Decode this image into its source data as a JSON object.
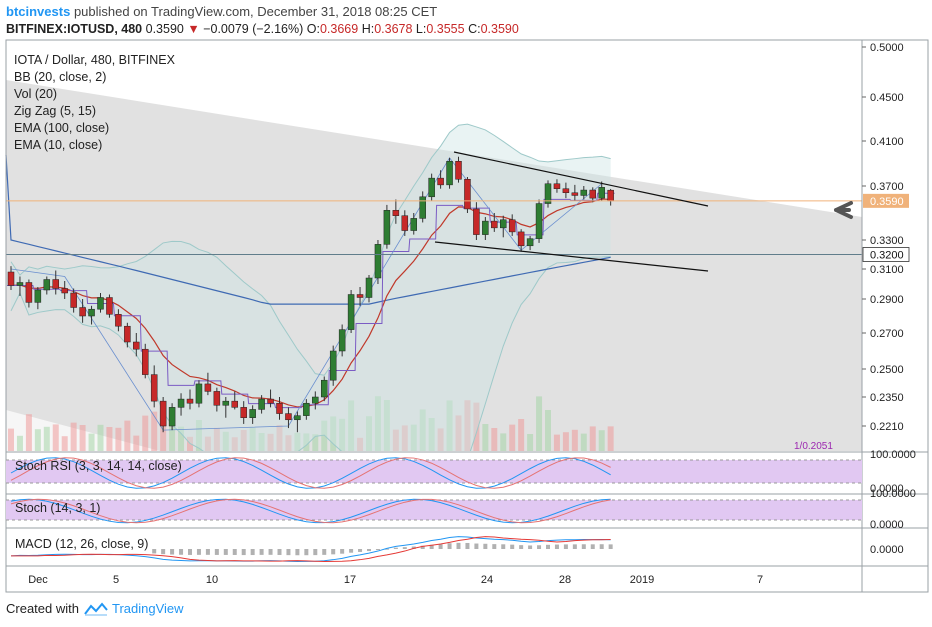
{
  "header": {
    "author": "btcinvests",
    "published": "published on TradingView.com, December 31, 2018 08:25 CET",
    "symbol": "BITFINEX:IOTUSD, 480",
    "last": "0.3590",
    "change": "−0.0079 (−2.16%)",
    "o_label": "O:",
    "o": "0.3669",
    "h_label": "H:",
    "h": "0.3678",
    "l_label": "L:",
    "l": "0.3555",
    "c_label": "C:",
    "c": "0.3590"
  },
  "legend": {
    "title": "IOTA / Dollar, 480, BITFINEX",
    "items": [
      "BB (20, close, 2)",
      "Vol (20)",
      "Zig Zag (5, 15)",
      "EMA (100, close)",
      "EMA (10, close)"
    ]
  },
  "price_axis": {
    "ticks": [
      "0.5000",
      "0.4500",
      "0.4100",
      "0.3700",
      "0.3300",
      "0.3100",
      "0.2900",
      "0.2700",
      "0.2500",
      "0.2350",
      "0.2210"
    ],
    "tick_values": [
      0.5,
      0.45,
      0.41,
      0.37,
      0.33,
      0.31,
      0.29,
      0.27,
      0.25,
      0.235,
      0.221
    ],
    "last_price_tag": "0.3590",
    "level_tag": "0.3200",
    "vol_tag": "1/0.2051"
  },
  "time_axis": {
    "labels": [
      "Dec",
      "5",
      "10",
      "17",
      "24",
      "28",
      "2019",
      "7"
    ]
  },
  "panes": {
    "stoch_rsi": {
      "label": "Stoch RSI (3, 3, 14, 14, close)",
      "ticks": [
        "100.0000",
        "0.0000"
      ]
    },
    "stoch": {
      "label": "Stoch (14, 3, 1)",
      "ticks": [
        "100.0000",
        "0.0000"
      ]
    },
    "macd": {
      "label": "MACD (12, 26, close, 9)",
      "ticks": [
        "0.0000"
      ]
    }
  },
  "footer": {
    "created": "Created with",
    "brand": "TradingView"
  },
  "colors": {
    "up": "#2e7d32",
    "down": "#c62828",
    "ema100": "#3f6ab3",
    "ema10": "#c0392b",
    "zigzag": "#7b5cc4",
    "bb": "#9ec9c9",
    "stoch_band": "#e1c8f2",
    "price_line": "#f0b27a",
    "accent": "#2196f3"
  },
  "chart_data": {
    "type": "candlestick",
    "interval": "480",
    "series": [
      {
        "name": "IOTA / Dollar",
        "ohlc": [
          [
            0.308,
            0.312,
            0.296,
            0.299
          ],
          [
            0.299,
            0.305,
            0.292,
            0.301
          ],
          [
            0.301,
            0.303,
            0.285,
            0.288
          ],
          [
            0.288,
            0.298,
            0.284,
            0.296
          ],
          [
            0.296,
            0.305,
            0.293,
            0.303
          ],
          [
            0.303,
            0.309,
            0.293,
            0.297
          ],
          [
            0.297,
            0.302,
            0.29,
            0.294
          ],
          [
            0.294,
            0.297,
            0.282,
            0.285
          ],
          [
            0.285,
            0.29,
            0.276,
            0.28
          ],
          [
            0.28,
            0.286,
            0.275,
            0.284
          ],
          [
            0.284,
            0.294,
            0.282,
            0.291
          ],
          [
            0.291,
            0.293,
            0.279,
            0.281
          ],
          [
            0.281,
            0.284,
            0.271,
            0.274
          ],
          [
            0.274,
            0.276,
            0.262,
            0.265
          ],
          [
            0.265,
            0.27,
            0.257,
            0.261
          ],
          [
            0.261,
            0.264,
            0.245,
            0.247
          ],
          [
            0.247,
            0.252,
            0.23,
            0.233
          ],
          [
            0.233,
            0.235,
            0.218,
            0.221
          ],
          [
            0.221,
            0.232,
            0.219,
            0.23
          ],
          [
            0.23,
            0.237,
            0.226,
            0.234
          ],
          [
            0.234,
            0.239,
            0.229,
            0.232
          ],
          [
            0.232,
            0.244,
            0.23,
            0.242
          ],
          [
            0.242,
            0.248,
            0.236,
            0.238
          ],
          [
            0.238,
            0.24,
            0.228,
            0.231
          ],
          [
            0.231,
            0.235,
            0.225,
            0.233
          ],
          [
            0.233,
            0.238,
            0.229,
            0.23
          ],
          [
            0.23,
            0.233,
            0.222,
            0.225
          ],
          [
            0.225,
            0.231,
            0.222,
            0.229
          ],
          [
            0.229,
            0.236,
            0.227,
            0.234
          ],
          [
            0.234,
            0.239,
            0.23,
            0.232
          ],
          [
            0.232,
            0.235,
            0.224,
            0.227
          ],
          [
            0.227,
            0.23,
            0.22,
            0.224
          ],
          [
            0.224,
            0.228,
            0.218,
            0.226
          ],
          [
            0.226,
            0.234,
            0.224,
            0.232
          ],
          [
            0.232,
            0.238,
            0.229,
            0.235
          ],
          [
            0.235,
            0.246,
            0.233,
            0.244
          ],
          [
            0.244,
            0.263,
            0.241,
            0.26
          ],
          [
            0.26,
            0.275,
            0.257,
            0.272
          ],
          [
            0.272,
            0.296,
            0.27,
            0.293
          ],
          [
            0.293,
            0.298,
            0.286,
            0.291
          ],
          [
            0.291,
            0.306,
            0.288,
            0.304
          ],
          [
            0.304,
            0.33,
            0.3,
            0.327
          ],
          [
            0.327,
            0.356,
            0.324,
            0.352
          ],
          [
            0.352,
            0.36,
            0.342,
            0.348
          ],
          [
            0.348,
            0.352,
            0.333,
            0.337
          ],
          [
            0.337,
            0.35,
            0.334,
            0.346
          ],
          [
            0.346,
            0.366,
            0.343,
            0.362
          ],
          [
            0.362,
            0.381,
            0.359,
            0.377
          ],
          [
            0.377,
            0.384,
            0.368,
            0.371
          ],
          [
            0.371,
            0.395,
            0.368,
            0.392
          ],
          [
            0.392,
            0.396,
            0.373,
            0.376
          ],
          [
            0.376,
            0.378,
            0.35,
            0.353
          ],
          [
            0.353,
            0.358,
            0.33,
            0.334
          ],
          [
            0.334,
            0.347,
            0.33,
            0.344
          ],
          [
            0.344,
            0.35,
            0.336,
            0.339
          ],
          [
            0.339,
            0.348,
            0.332,
            0.345
          ],
          [
            0.345,
            0.349,
            0.333,
            0.336
          ],
          [
            0.336,
            0.338,
            0.322,
            0.326
          ],
          [
            0.326,
            0.333,
            0.323,
            0.331
          ],
          [
            0.331,
            0.36,
            0.328,
            0.357
          ],
          [
            0.357,
            0.375,
            0.354,
            0.372
          ],
          [
            0.372,
            0.376,
            0.365,
            0.368
          ],
          [
            0.368,
            0.373,
            0.361,
            0.365
          ],
          [
            0.365,
            0.371,
            0.359,
            0.363
          ],
          [
            0.363,
            0.37,
            0.36,
            0.367
          ],
          [
            0.367,
            0.369,
            0.358,
            0.361
          ],
          [
            0.361,
            0.374,
            0.359,
            0.369
          ],
          [
            0.3669,
            0.3678,
            0.3555,
            0.359
          ]
        ]
      }
    ],
    "x_axis_labels": [
      "Dec",
      "5",
      "10",
      "17",
      "24",
      "28",
      "2019",
      "7"
    ],
    "ylim": [
      0.205,
      0.505
    ],
    "annotations": [
      "descending channel upper line",
      "descending channel lower line",
      "horizontal level 0.3200",
      "left-pointing arrow at last price"
    ],
    "grid": false
  }
}
